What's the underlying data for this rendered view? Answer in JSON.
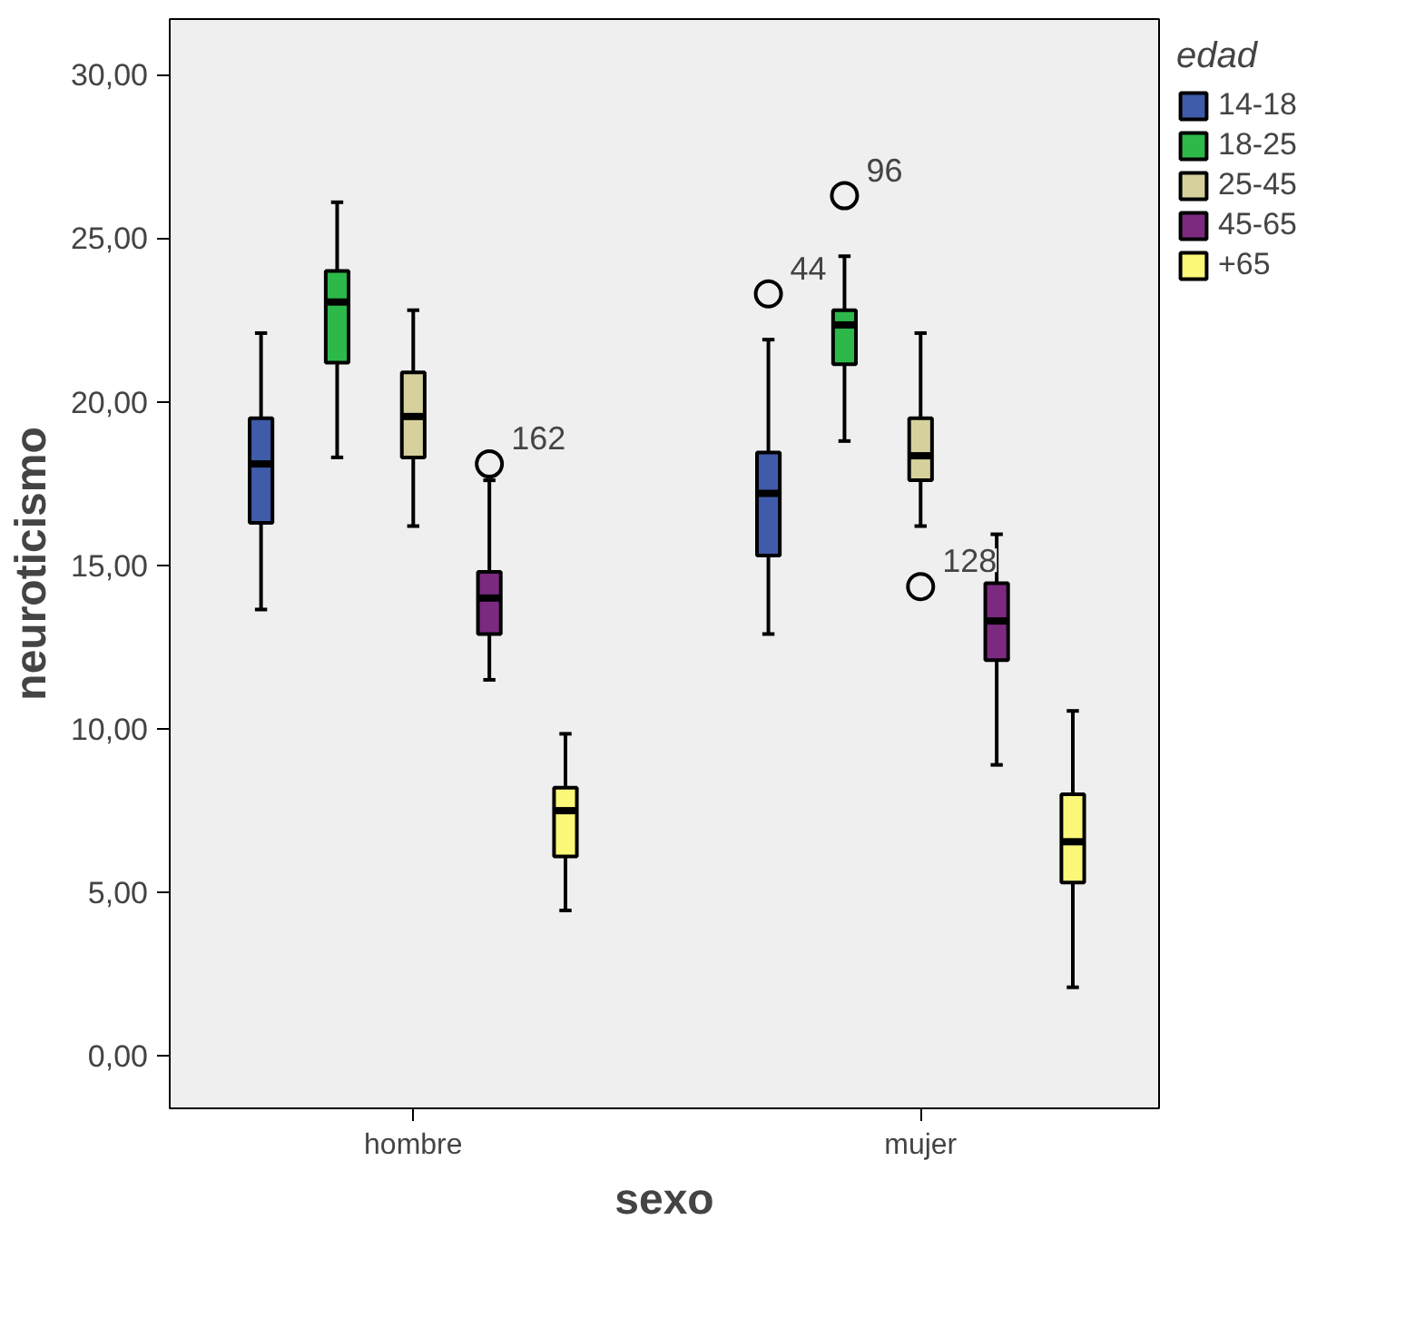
{
  "chart_data": {
    "type": "box",
    "xlabel": "sexo",
    "ylabel": "neuroticismo",
    "legend_title": "edad",
    "legend": "right",
    "grid": false,
    "categories": [
      "hombre",
      "mujer"
    ],
    "ylim": [
      -1.6,
      31.7
    ],
    "yticks": [
      {
        "value": 0,
        "label": "0,00"
      },
      {
        "value": 5,
        "label": "5,00"
      },
      {
        "value": 10,
        "label": "10,00"
      },
      {
        "value": 15,
        "label": "15,00"
      },
      {
        "value": 20,
        "label": "20,00"
      },
      {
        "value": 25,
        "label": "25,00"
      },
      {
        "value": 30,
        "label": "30,00"
      }
    ],
    "series": [
      {
        "name": "14-18",
        "color": "#3f5ba9",
        "boxes": [
          {
            "low": 13.65,
            "q1": 16.3,
            "median": 18.1,
            "q3": 19.5,
            "high": 22.1
          },
          {
            "low": 12.9,
            "q1": 15.3,
            "median": 17.2,
            "q3": 18.45,
            "high": 21.9,
            "outliers": [
              23.3
            ]
          }
        ]
      },
      {
        "name": "18-25",
        "color": "#2db84a",
        "boxes": [
          {
            "low": 18.3,
            "q1": 21.2,
            "median": 23.05,
            "q3": 24.0,
            "high": 26.1
          },
          {
            "low": 18.8,
            "q1": 21.15,
            "median": 22.35,
            "q3": 22.8,
            "high": 24.45,
            "outliers": [
              26.3
            ]
          }
        ]
      },
      {
        "name": "25-45",
        "color": "#d6d19c",
        "boxes": [
          {
            "low": 16.2,
            "q1": 18.3,
            "median": 19.55,
            "q3": 20.9,
            "high": 22.8
          },
          {
            "low": 16.2,
            "q1": 17.6,
            "median": 18.35,
            "q3": 19.5,
            "high": 22.1,
            "outliers": [
              14.35
            ]
          }
        ]
      },
      {
        "name": "45-65",
        "color": "#7b2a7f",
        "boxes": [
          {
            "low": 11.5,
            "q1": 12.9,
            "median": 14.0,
            "q3": 14.8,
            "high": 17.6,
            "outliers": [
              18.1
            ]
          },
          {
            "low": 8.9,
            "q1": 12.1,
            "median": 13.3,
            "q3": 14.45,
            "high": 15.95
          }
        ]
      },
      {
        "name": "+65",
        "color": "#fbf779",
        "boxes": [
          {
            "low": 4.45,
            "q1": 6.1,
            "median": 7.5,
            "q3": 8.2,
            "high": 9.85
          },
          {
            "low": 2.1,
            "q1": 5.3,
            "median": 6.55,
            "q3": 8.0,
            "high": 10.55
          }
        ]
      }
    ],
    "annotations": [
      "162",
      "44",
      "96",
      "128"
    ]
  }
}
